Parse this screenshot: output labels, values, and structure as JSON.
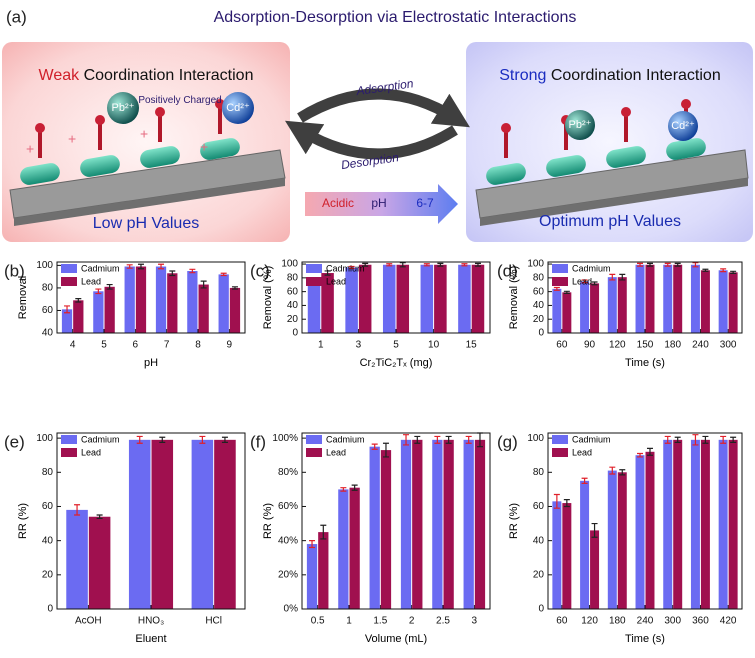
{
  "schematic": {
    "panel": "(a)",
    "title": "Adsorption-Desorption via Electrostatic Interactions",
    "left": {
      "emphasis": "Weak",
      "heading": "Coordination Interaction",
      "label": "Positively Charged",
      "caption": "Low pH Values"
    },
    "right": {
      "emphasis": "Strong",
      "heading": "Coordination Interaction",
      "caption": "Optimum pH Values"
    },
    "ions": [
      "Pb²⁺",
      "Cd²⁺"
    ],
    "arrows": {
      "top": "Adsorption",
      "bottom": "Desorption"
    },
    "ph_arrow": {
      "start": "Acidic",
      "middle": "pH",
      "end": "6-7"
    }
  },
  "chart_data": [
    {
      "type": "bar",
      "panel": "(b)",
      "xlabel": "pH",
      "ylabel": "Removal",
      "legend": "upper left",
      "categories": [
        "4",
        "5",
        "6",
        "7",
        "8",
        "9"
      ],
      "series": [
        {
          "name": "Cadmium",
          "color": "#6b6bf2",
          "error_color": "#e0202a",
          "values": [
            61,
            77,
            99,
            99,
            95,
            92
          ],
          "errors": [
            3,
            2,
            1.5,
            2,
            1.5,
            1
          ]
        },
        {
          "name": "Lead",
          "color": "#a0104f",
          "error_color": "#222222",
          "values": [
            69,
            81,
            99,
            93,
            83,
            80
          ],
          "errors": [
            1.5,
            2,
            2,
            2,
            3,
            1
          ]
        }
      ],
      "ylim": [
        40,
        103
      ],
      "yticks": [
        40,
        60,
        80,
        100
      ]
    },
    {
      "type": "bar",
      "panel": "(c)",
      "xlabel": "Cr₂TiC₂Tₓ (mg)",
      "ylabel": "Removal (%)",
      "legend": "upper left",
      "categories": [
        "1",
        "3",
        "5",
        "10",
        "15"
      ],
      "series": [
        {
          "name": "Cadmium",
          "color": "#6b6bf2",
          "error_color": "#e0202a",
          "values": [
            72,
            95,
            99,
            99,
            99
          ],
          "errors": [
            1.5,
            1.5,
            1.5,
            1.5,
            1.5
          ]
        },
        {
          "name": "Lead",
          "color": "#a0104f",
          "error_color": "#222222",
          "values": [
            87,
            99,
            99,
            99,
            99
          ],
          "errors": [
            3,
            2,
            3,
            2,
            2
          ]
        }
      ],
      "ylim": [
        0,
        103
      ],
      "yticks": [
        0,
        20,
        40,
        60,
        80,
        100
      ]
    },
    {
      "type": "bar",
      "panel": "(d)",
      "xlabel": "Time (s)",
      "ylabel": "Removal (%)",
      "legend": "upper left",
      "categories": [
        "60",
        "90",
        "120",
        "150",
        "180",
        "240",
        "300"
      ],
      "series": [
        {
          "name": "Cadmium",
          "color": "#6b6bf2",
          "error_color": "#e0202a",
          "values": [
            64,
            75,
            81,
            99,
            99,
            99,
            91
          ],
          "errors": [
            2,
            2,
            4,
            2,
            2,
            3,
            2
          ]
        },
        {
          "name": "Lead",
          "color": "#a0104f",
          "error_color": "#222222",
          "values": [
            59,
            72,
            81,
            99,
            99,
            91,
            88
          ],
          "errors": [
            1.5,
            2,
            4,
            2,
            2,
            1.5,
            1.5
          ]
        }
      ],
      "ylim": [
        0,
        103
      ],
      "yticks": [
        0,
        20,
        40,
        60,
        80,
        100
      ]
    },
    {
      "type": "bar",
      "panel": "(e)",
      "xlabel": "Eluent",
      "ylabel": "RR (%)",
      "legend": "upper left",
      "categories": [
        "AcOH",
        "HNO₃",
        "HCl"
      ],
      "series": [
        {
          "name": "Cadmium",
          "color": "#6b6bf2",
          "error_color": "#e0202a",
          "values": [
            58,
            99,
            99
          ],
          "errors": [
            3,
            2,
            2
          ]
        },
        {
          "name": "Lead",
          "color": "#a0104f",
          "error_color": "#222222",
          "values": [
            54,
            99,
            99
          ],
          "errors": [
            1,
            1.5,
            1.5
          ]
        }
      ],
      "ylim": [
        0,
        103
      ],
      "yticks": [
        0,
        20,
        40,
        60,
        80,
        100
      ]
    },
    {
      "type": "bar",
      "panel": "(f)",
      "xlabel": "Volume (mL)",
      "ylabel": "RR (%)",
      "legend": "upper left",
      "categories": [
        "0.5",
        "1",
        "1.5",
        "2",
        "2.5",
        "3"
      ],
      "series": [
        {
          "name": "Cadmium",
          "color": "#6b6bf2",
          "error_color": "#e0202a",
          "values": [
            38,
            70,
            95,
            99,
            99,
            99
          ],
          "errors": [
            2,
            1,
            1.5,
            3,
            2,
            2
          ]
        },
        {
          "name": "Lead",
          "color": "#a0104f",
          "error_color": "#222222",
          "values": [
            45,
            71,
            93,
            99,
            99,
            99
          ],
          "errors": [
            4,
            1.5,
            4,
            2,
            2,
            4
          ]
        }
      ],
      "ylim": [
        0,
        103
      ],
      "yticks": [
        {
          "value": 0,
          "label": "0%"
        },
        {
          "value": 20,
          "label": "20%"
        },
        {
          "value": 40,
          "label": "40%"
        },
        {
          "value": 60,
          "label": "60%"
        },
        {
          "value": 80,
          "label": "80%"
        },
        {
          "value": 100,
          "label": "100%"
        }
      ]
    },
    {
      "type": "bar",
      "panel": "(g)",
      "xlabel": "Time (s)",
      "ylabel": "RR (%)",
      "legend": "upper left",
      "categories": [
        "60",
        "120",
        "180",
        "240",
        "300",
        "360",
        "420"
      ],
      "series": [
        {
          "name": "Cadmium",
          "color": "#6b6bf2",
          "error_color": "#e0202a",
          "values": [
            63,
            75,
            81,
            90,
            99,
            99,
            99
          ],
          "errors": [
            4,
            1.5,
            2,
            1,
            2,
            3,
            2
          ]
        },
        {
          "name": "Lead",
          "color": "#a0104f",
          "error_color": "#222222",
          "values": [
            62,
            46,
            80,
            92,
            99,
            99,
            99
          ],
          "errors": [
            2,
            4,
            1.5,
            2,
            1.5,
            2,
            1.5
          ]
        }
      ],
      "ylim": [
        0,
        103
      ],
      "yticks": [
        0,
        20,
        40,
        60,
        80,
        100
      ]
    }
  ]
}
